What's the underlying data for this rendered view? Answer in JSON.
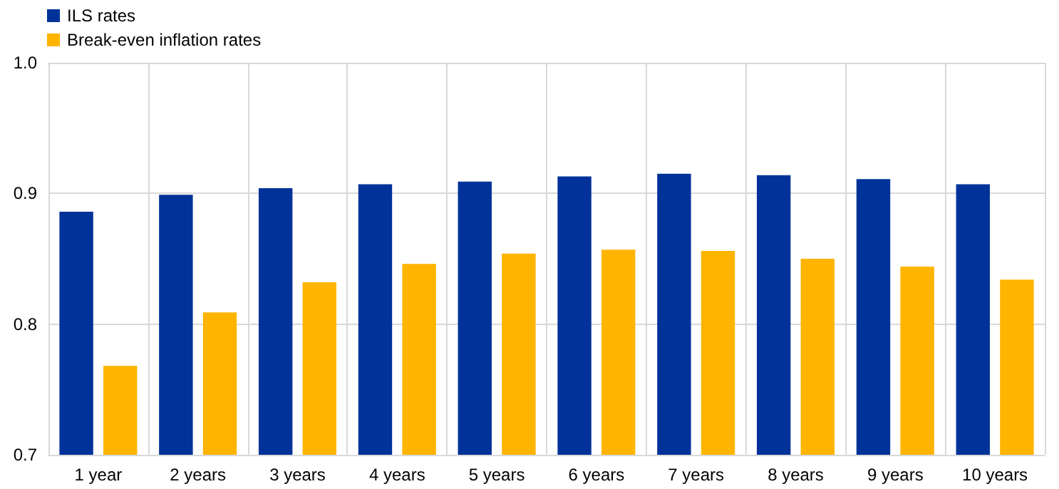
{
  "chart_data": {
    "type": "bar",
    "categories": [
      "1 year",
      "2 years",
      "3 years",
      "4 years",
      "5 years",
      "6 years",
      "7 years",
      "8 years",
      "9 years",
      "10 years"
    ],
    "series": [
      {
        "name": "ILS rates",
        "color": "#003299",
        "values": [
          0.886,
          0.899,
          0.904,
          0.907,
          0.909,
          0.913,
          0.915,
          0.914,
          0.911,
          0.907
        ]
      },
      {
        "name": "Break-even inflation rates",
        "color": "#ffb400",
        "values": [
          0.768,
          0.809,
          0.832,
          0.846,
          0.854,
          0.857,
          0.856,
          0.85,
          0.844,
          0.834
        ]
      }
    ],
    "ylim": [
      0.7,
      1.0
    ],
    "yticks": [
      0.7,
      0.8,
      0.9,
      {
        "value": 1,
        "label": "1.0"
      }
    ],
    "grid": true,
    "legend": "top left"
  }
}
